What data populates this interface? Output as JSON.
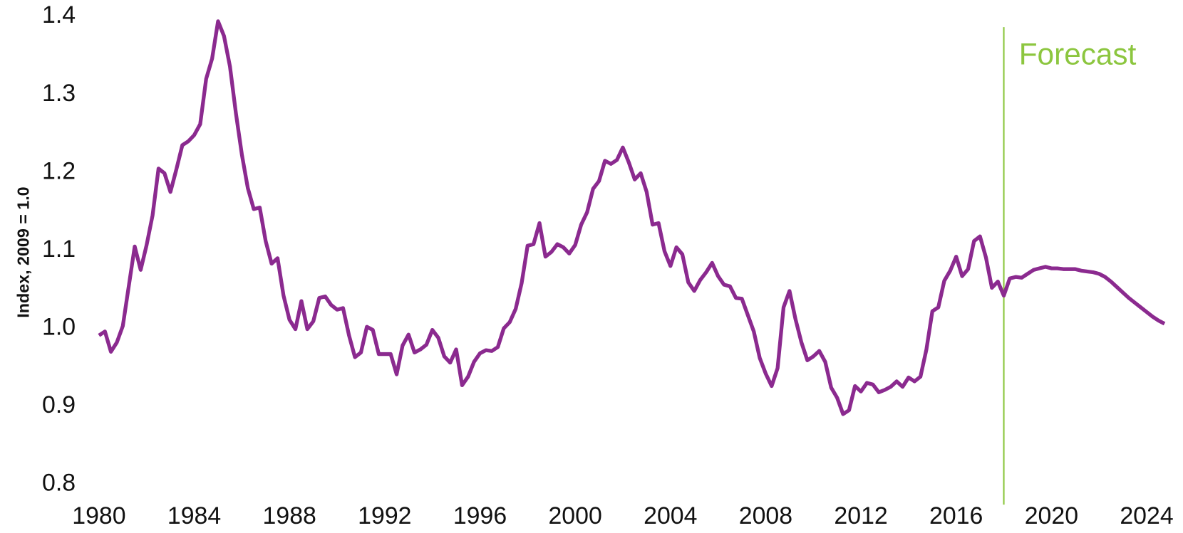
{
  "chart_data": {
    "type": "line",
    "ylabel": "Index, 2009 = 1.0",
    "annotation": {
      "text": "Forecast",
      "x": 2018,
      "color": "#8cc63f"
    },
    "x": [
      1980,
      1980.25,
      1980.5,
      1980.75,
      1981,
      1981.25,
      1981.5,
      1981.75,
      1982,
      1982.25,
      1982.5,
      1982.75,
      1983,
      1983.25,
      1983.5,
      1983.75,
      1984,
      1984.25,
      1984.5,
      1984.75,
      1985,
      1985.25,
      1985.5,
      1985.75,
      1986,
      1986.25,
      1986.5,
      1986.75,
      1987,
      1987.25,
      1987.5,
      1987.75,
      1988,
      1988.25,
      1988.5,
      1988.75,
      1989,
      1989.25,
      1989.5,
      1989.75,
      1990,
      1990.25,
      1990.5,
      1990.75,
      1991,
      1991.25,
      1991.5,
      1991.75,
      1992,
      1992.25,
      1992.5,
      1992.75,
      1993,
      1993.25,
      1993.5,
      1993.75,
      1994,
      1994.25,
      1994.5,
      1994.75,
      1995,
      1995.25,
      1995.5,
      1995.75,
      1996,
      1996.25,
      1996.5,
      1996.75,
      1997,
      1997.25,
      1997.5,
      1997.75,
      1998,
      1998.25,
      1998.5,
      1998.75,
      1999,
      1999.25,
      1999.5,
      1999.75,
      2000,
      2000.25,
      2000.5,
      2000.75,
      2001,
      2001.25,
      2001.5,
      2001.75,
      2002,
      2002.25,
      2002.5,
      2002.75,
      2003,
      2003.25,
      2003.5,
      2003.75,
      2004,
      2004.25,
      2004.5,
      2004.75,
      2005,
      2005.25,
      2005.5,
      2005.75,
      2006,
      2006.25,
      2006.5,
      2006.75,
      2007,
      2007.25,
      2007.5,
      2007.75,
      2008,
      2008.25,
      2008.5,
      2008.75,
      2009,
      2009.25,
      2009.5,
      2009.75,
      2010,
      2010.25,
      2010.5,
      2010.75,
      2011,
      2011.25,
      2011.5,
      2011.75,
      2012,
      2012.25,
      2012.5,
      2012.75,
      2013,
      2013.25,
      2013.5,
      2013.75,
      2014,
      2014.25,
      2014.5,
      2014.75,
      2015,
      2015.25,
      2015.5,
      2015.75,
      2016,
      2016.25,
      2016.5,
      2016.75,
      2017,
      2017.25,
      2017.5,
      2017.75,
      2018,
      2018.25,
      2018.5,
      2018.75,
      2019,
      2019.25,
      2019.5,
      2019.75,
      2020,
      2020.25,
      2020.5,
      2020.75,
      2021,
      2021.25,
      2021.5,
      2021.75,
      2022,
      2022.25,
      2022.5,
      2022.75,
      2023,
      2023.25,
      2023.5,
      2023.75,
      2024,
      2024.25,
      2024.5,
      2024.75
    ],
    "series": [
      {
        "name": "Index",
        "color": "#8b2a8f",
        "values": [
          0.991,
          0.996,
          0.97,
          0.982,
          1.003,
          1.054,
          1.105,
          1.075,
          1.107,
          1.145,
          1.205,
          1.199,
          1.175,
          1.204,
          1.235,
          1.24,
          1.248,
          1.262,
          1.32,
          1.346,
          1.394,
          1.375,
          1.336,
          1.276,
          1.223,
          1.18,
          1.153,
          1.155,
          1.112,
          1.083,
          1.09,
          1.042,
          1.011,
          0.999,
          1.035,
          0.999,
          1.009,
          1.039,
          1.041,
          1.03,
          1.024,
          1.026,
          0.991,
          0.963,
          0.969,
          1.002,
          0.998,
          0.967,
          0.967,
          0.967,
          0.941,
          0.978,
          0.992,
          0.969,
          0.973,
          0.979,
          0.998,
          0.988,
          0.964,
          0.956,
          0.973,
          0.927,
          0.938,
          0.957,
          0.968,
          0.972,
          0.971,
          0.976,
          1.0,
          1.008,
          1.025,
          1.058,
          1.106,
          1.108,
          1.135,
          1.092,
          1.098,
          1.108,
          1.104,
          1.096,
          1.107,
          1.133,
          1.149,
          1.179,
          1.189,
          1.215,
          1.211,
          1.216,
          1.232,
          1.213,
          1.191,
          1.199,
          1.175,
          1.133,
          1.135,
          1.099,
          1.08,
          1.104,
          1.095,
          1.059,
          1.048,
          1.062,
          1.072,
          1.084,
          1.067,
          1.056,
          1.054,
          1.039,
          1.038,
          1.017,
          0.996,
          0.962,
          0.942,
          0.926,
          0.949,
          1.027,
          1.048,
          1.012,
          0.982,
          0.959,
          0.964,
          0.971,
          0.957,
          0.924,
          0.911,
          0.89,
          0.895,
          0.926,
          0.919,
          0.93,
          0.928,
          0.918,
          0.921,
          0.925,
          0.932,
          0.925,
          0.937,
          0.932,
          0.938,
          0.973,
          1.022,
          1.027,
          1.061,
          1.074,
          1.092,
          1.067,
          1.076,
          1.112,
          1.118,
          1.091,
          1.052,
          1.06,
          1.042,
          1.064,
          1.066,
          1.065,
          1.07,
          1.075,
          1.077,
          1.079,
          1.077,
          1.077,
          1.076,
          1.076,
          1.076,
          1.074,
          1.073,
          1.072,
          1.07,
          1.066,
          1.06,
          1.053,
          1.046,
          1.039,
          1.033,
          1.027,
          1.021,
          1.015,
          1.01,
          1.006
        ]
      }
    ],
    "xlim": [
      1980,
      2025
    ],
    "xticks": [
      1980,
      1984,
      1988,
      1992,
      1996,
      2000,
      2004,
      2008,
      2012,
      2016,
      2020,
      2024
    ],
    "ylim": [
      0.8,
      1.4
    ],
    "yticks": [
      0.8,
      0.9,
      {
        "value": 1,
        "label": "1.0"
      },
      1.1,
      1.2,
      1.3,
      1.4
    ],
    "grid": false
  }
}
